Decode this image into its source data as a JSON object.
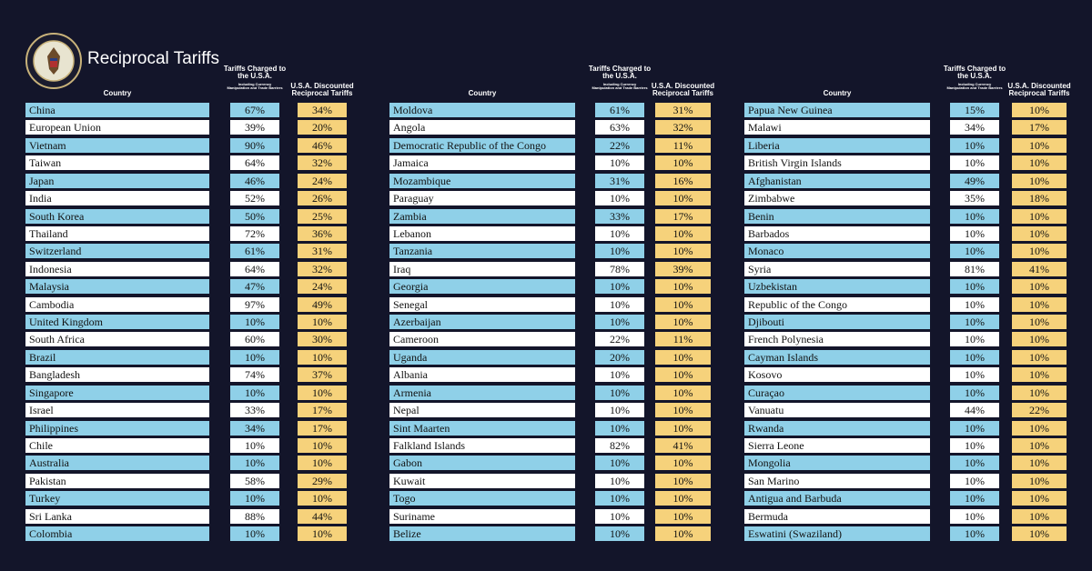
{
  "header": {
    "title": "Reciprocal Tariffs"
  },
  "tables": [
    {
      "headers": {
        "country": "Country",
        "charged": "Tariffs Charged to the U.S.A.",
        "charged_note": "Including Currency Manipulation and Trade Barriers",
        "discounted": "U.S.A. Discounted Reciprocal Tariffs"
      },
      "rows": [
        [
          "China",
          "67%",
          "34%"
        ],
        [
          "European Union",
          "39%",
          "20%"
        ],
        [
          "Vietnam",
          "90%",
          "46%"
        ],
        [
          "Taiwan",
          "64%",
          "32%"
        ],
        [
          "Japan",
          "46%",
          "24%"
        ],
        [
          "India",
          "52%",
          "26%"
        ],
        [
          "South Korea",
          "50%",
          "25%"
        ],
        [
          "Thailand",
          "72%",
          "36%"
        ],
        [
          "Switzerland",
          "61%",
          "31%"
        ],
        [
          "Indonesia",
          "64%",
          "32%"
        ],
        [
          "Malaysia",
          "47%",
          "24%"
        ],
        [
          "Cambodia",
          "97%",
          "49%"
        ],
        [
          "United Kingdom",
          "10%",
          "10%"
        ],
        [
          "South Africa",
          "60%",
          "30%"
        ],
        [
          "Brazil",
          "10%",
          "10%"
        ],
        [
          "Bangladesh",
          "74%",
          "37%"
        ],
        [
          "Singapore",
          "10%",
          "10%"
        ],
        [
          "Israel",
          "33%",
          "17%"
        ],
        [
          "Philippines",
          "34%",
          "17%"
        ],
        [
          "Chile",
          "10%",
          "10%"
        ],
        [
          "Australia",
          "10%",
          "10%"
        ],
        [
          "Pakistan",
          "58%",
          "29%"
        ],
        [
          "Turkey",
          "10%",
          "10%"
        ],
        [
          "Sri Lanka",
          "88%",
          "44%"
        ],
        [
          "Colombia",
          "10%",
          "10%"
        ]
      ]
    },
    {
      "headers": {
        "country": "Country",
        "charged": "Tariffs Charged to the U.S.A.",
        "charged_note": "Including Currency Manipulation and Trade Barriers",
        "discounted": "U.S.A. Discounted Reciprocal Tariffs"
      },
      "rows": [
        [
          "Moldova",
          "61%",
          "31%"
        ],
        [
          "Angola",
          "63%",
          "32%"
        ],
        [
          "Democratic Republic of the Congo",
          "22%",
          "11%"
        ],
        [
          "Jamaica",
          "10%",
          "10%"
        ],
        [
          "Mozambique",
          "31%",
          "16%"
        ],
        [
          "Paraguay",
          "10%",
          "10%"
        ],
        [
          "Zambia",
          "33%",
          "17%"
        ],
        [
          "Lebanon",
          "10%",
          "10%"
        ],
        [
          "Tanzania",
          "10%",
          "10%"
        ],
        [
          "Iraq",
          "78%",
          "39%"
        ],
        [
          "Georgia",
          "10%",
          "10%"
        ],
        [
          "Senegal",
          "10%",
          "10%"
        ],
        [
          "Azerbaijan",
          "10%",
          "10%"
        ],
        [
          "Cameroon",
          "22%",
          "11%"
        ],
        [
          "Uganda",
          "20%",
          "10%"
        ],
        [
          "Albania",
          "10%",
          "10%"
        ],
        [
          "Armenia",
          "10%",
          "10%"
        ],
        [
          "Nepal",
          "10%",
          "10%"
        ],
        [
          "Sint Maarten",
          "10%",
          "10%"
        ],
        [
          "Falkland Islands",
          "82%",
          "41%"
        ],
        [
          "Gabon",
          "10%",
          "10%"
        ],
        [
          "Kuwait",
          "10%",
          "10%"
        ],
        [
          "Togo",
          "10%",
          "10%"
        ],
        [
          "Suriname",
          "10%",
          "10%"
        ],
        [
          "Belize",
          "10%",
          "10%"
        ]
      ]
    },
    {
      "headers": {
        "country": "Country",
        "charged": "Tariffs Charged to the U.S.A.",
        "charged_note": "Including Currency Manipulation and Trade Barriers",
        "discounted": "U.S.A. Discounted Reciprocal Tariffs"
      },
      "rows": [
        [
          "Papua New Guinea",
          "15%",
          "10%"
        ],
        [
          "Malawi",
          "34%",
          "17%"
        ],
        [
          "Liberia",
          "10%",
          "10%"
        ],
        [
          "British Virgin Islands",
          "10%",
          "10%"
        ],
        [
          "Afghanistan",
          "49%",
          "10%"
        ],
        [
          "Zimbabwe",
          "35%",
          "18%"
        ],
        [
          "Benin",
          "10%",
          "10%"
        ],
        [
          "Barbados",
          "10%",
          "10%"
        ],
        [
          "Monaco",
          "10%",
          "10%"
        ],
        [
          "Syria",
          "81%",
          "41%"
        ],
        [
          "Uzbekistan",
          "10%",
          "10%"
        ],
        [
          "Republic of the Congo",
          "10%",
          "10%"
        ],
        [
          "Djibouti",
          "10%",
          "10%"
        ],
        [
          "French Polynesia",
          "10%",
          "10%"
        ],
        [
          "Cayman Islands",
          "10%",
          "10%"
        ],
        [
          "Kosovo",
          "10%",
          "10%"
        ],
        [
          "Curaçao",
          "10%",
          "10%"
        ],
        [
          "Vanuatu",
          "44%",
          "22%"
        ],
        [
          "Rwanda",
          "10%",
          "10%"
        ],
        [
          "Sierra Leone",
          "10%",
          "10%"
        ],
        [
          "Mongolia",
          "10%",
          "10%"
        ],
        [
          "San Marino",
          "10%",
          "10%"
        ],
        [
          "Antigua and Barbuda",
          "10%",
          "10%"
        ],
        [
          "Bermuda",
          "10%",
          "10%"
        ],
        [
          "Eswatini (Swaziland)",
          "10%",
          "10%"
        ]
      ]
    }
  ]
}
